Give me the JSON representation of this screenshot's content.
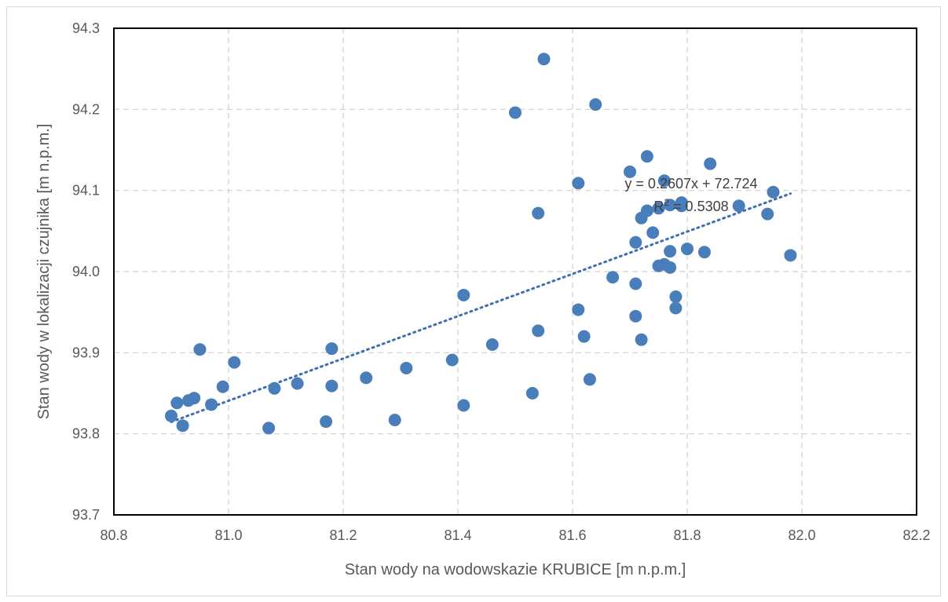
{
  "chart_data": {
    "type": "scatter",
    "title": "",
    "xlabel": "Stan wody na wodowskazie KRUBICE [m n.p.m.]",
    "ylabel": "Stan wody  w lokalizacji czujnika [m n.p.m.]",
    "xlim": [
      80.8,
      82.2
    ],
    "ylim": [
      93.7,
      94.3
    ],
    "x_ticks": [
      "80.8",
      "81.0",
      "81.2",
      "81.4",
      "81.6",
      "81.8",
      "82.0",
      "82.2"
    ],
    "y_ticks": [
      "93.7",
      "93.8",
      "93.9",
      "94.0",
      "94.1",
      "94.2",
      "94.3"
    ],
    "grid": "dashed",
    "legend": "none",
    "colors": {
      "points": "#4a7ebb",
      "trendline": "#3f6fb0",
      "plot_border": "#000000",
      "grid": "#d0d0d0"
    },
    "points": [
      [
        80.9,
        93.822
      ],
      [
        80.91,
        93.838
      ],
      [
        80.92,
        93.81
      ],
      [
        80.93,
        93.841
      ],
      [
        80.94,
        93.844
      ],
      [
        80.95,
        93.904
      ],
      [
        80.97,
        93.836
      ],
      [
        80.99,
        93.858
      ],
      [
        81.01,
        93.888
      ],
      [
        81.07,
        93.807
      ],
      [
        81.08,
        93.856
      ],
      [
        81.12,
        93.862
      ],
      [
        81.17,
        93.815
      ],
      [
        81.18,
        93.905
      ],
      [
        81.18,
        93.859
      ],
      [
        81.24,
        93.869
      ],
      [
        81.29,
        93.817
      ],
      [
        81.31,
        93.881
      ],
      [
        81.39,
        93.891
      ],
      [
        81.41,
        93.971
      ],
      [
        81.41,
        93.835
      ],
      [
        81.46,
        93.91
      ],
      [
        81.5,
        94.196
      ],
      [
        81.53,
        93.85
      ],
      [
        81.54,
        94.072
      ],
      [
        81.54,
        93.927
      ],
      [
        81.55,
        94.262
      ],
      [
        81.61,
        94.109
      ],
      [
        81.61,
        93.953
      ],
      [
        81.62,
        93.92
      ],
      [
        81.63,
        93.867
      ],
      [
        81.64,
        94.206
      ],
      [
        81.67,
        93.993
      ],
      [
        81.7,
        94.123
      ],
      [
        81.71,
        94.036
      ],
      [
        81.71,
        93.985
      ],
      [
        81.71,
        93.945
      ],
      [
        81.72,
        94.066
      ],
      [
        81.72,
        93.916
      ],
      [
        81.73,
        94.142
      ],
      [
        81.73,
        94.075
      ],
      [
        81.74,
        94.048
      ],
      [
        81.75,
        94.078
      ],
      [
        81.75,
        94.007
      ],
      [
        81.76,
        94.112
      ],
      [
        81.76,
        94.009
      ],
      [
        81.77,
        94.082
      ],
      [
        81.77,
        94.025
      ],
      [
        81.77,
        94.005
      ],
      [
        81.78,
        93.969
      ],
      [
        81.78,
        93.955
      ],
      [
        81.79,
        94.085
      ],
      [
        81.79,
        94.081
      ],
      [
        81.8,
        94.028
      ],
      [
        81.83,
        94.024
      ],
      [
        81.84,
        94.133
      ],
      [
        81.89,
        94.081
      ],
      [
        81.94,
        94.071
      ],
      [
        81.95,
        94.098
      ],
      [
        81.98,
        94.02
      ]
    ],
    "trendline": {
      "type": "linear",
      "slope": 0.2607,
      "intercept": 72.724,
      "x_range": [
        80.9,
        81.98
      ],
      "equation_label": "y = 0.2607x + 72.724",
      "r2_prefix": "R",
      "r2_sup": "2",
      "r2_suffix": " = 0.5308"
    }
  }
}
